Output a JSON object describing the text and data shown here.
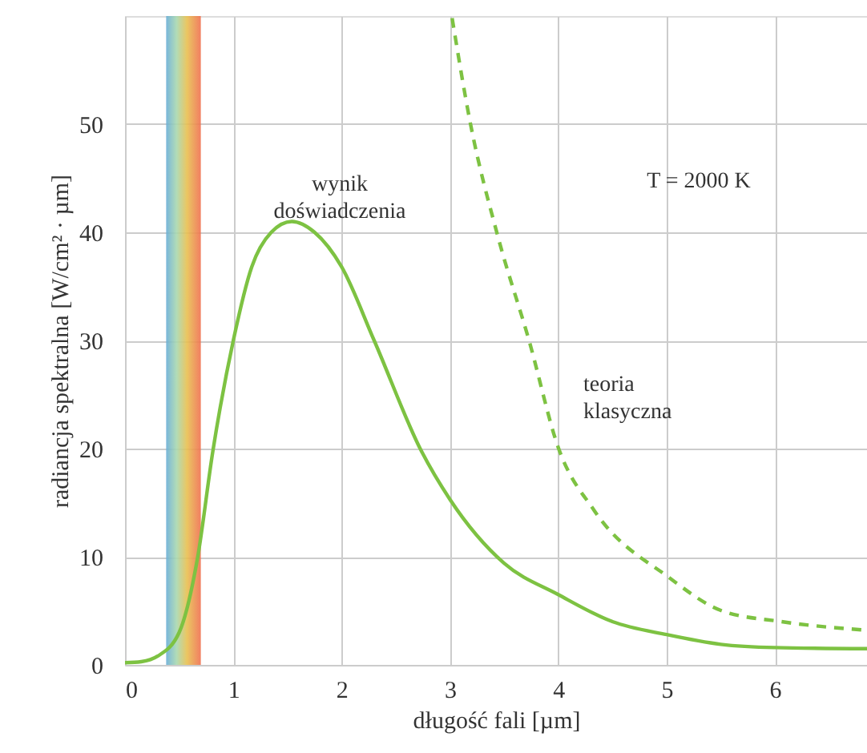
{
  "chart_data": {
    "type": "line",
    "xlabel": "długość fali [µm]",
    "ylabel": "radiancja spektralna [W/cm² · µm]",
    "xlim": [
      0,
      6.85
    ],
    "ylim": [
      0,
      60
    ],
    "xticks": [
      0,
      1,
      2,
      3,
      4,
      5,
      6
    ],
    "yticks": [
      0,
      10,
      20,
      30,
      40,
      50
    ],
    "grid": true,
    "series": [
      {
        "color": "#7dc242",
        "line_style": "solid",
        "x": [
          0,
          0.15,
          0.3,
          0.5,
          0.67,
          0.81,
          1.0,
          1.17,
          1.35,
          1.54,
          1.75,
          2.0,
          2.3,
          2.74,
          3.0,
          3.5,
          4.0,
          4.5,
          5.0,
          5.5,
          6.0,
          6.85
        ],
        "values": [
          0.2,
          0.3,
          0.8,
          3,
          9.9,
          19.7,
          30,
          36.8,
          40,
          41,
          40,
          36.8,
          30,
          19.7,
          15.3,
          9.4,
          6.5,
          4,
          2.8,
          1.9,
          1.6,
          1.5
        ]
      },
      {
        "color": "#7dc242",
        "line_style": "dashed",
        "x": [
          3.02,
          3.19,
          3.44,
          3.73,
          4.0,
          4.33,
          5.02,
          5.51,
          6.06,
          6.85
        ],
        "values": [
          59.8,
          50,
          39.7,
          30,
          20.1,
          14.3,
          8.1,
          5,
          4,
          3.2
        ]
      }
    ],
    "bands": [
      {
        "axis": "x",
        "from": 0.38,
        "to": 0.7,
        "label": null,
        "color": "#e8c050"
      }
    ],
    "annotations": [
      "wynik\ndoświadczenia",
      "T = 2000 K",
      "teoria\nklasyczna"
    ]
  }
}
